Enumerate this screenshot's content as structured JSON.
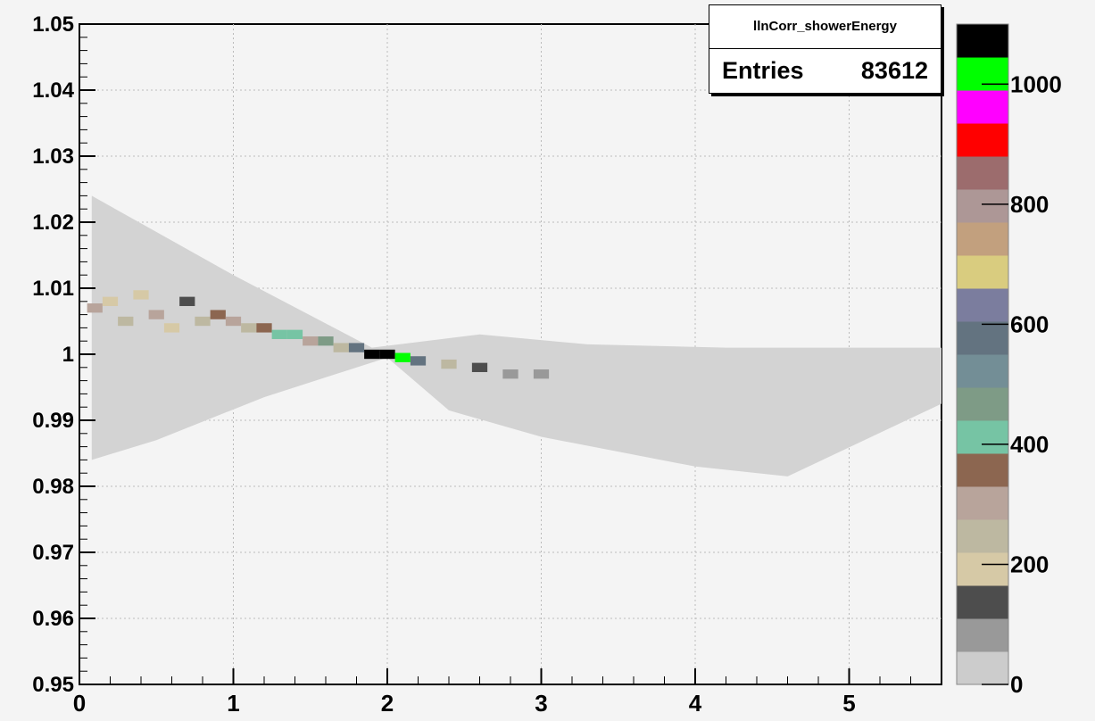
{
  "chart_data": {
    "type": "heatmap",
    "title": "",
    "xlabel": "",
    "ylabel": "",
    "xlim": [
      0,
      5.6
    ],
    "ylim": [
      0.95,
      1.05
    ],
    "grid": true,
    "x_ticks": [
      "0",
      "1",
      "2",
      "3",
      "4",
      "5"
    ],
    "y_ticks": [
      "0.95",
      "0.96",
      "0.97",
      "0.98",
      "0.99",
      "1",
      "1.01",
      "1.02",
      "1.03",
      "1.04",
      "1.05"
    ],
    "z_ticks": [
      "0",
      "200",
      "400",
      "600",
      "800",
      "1000"
    ],
    "zlim": [
      0,
      1100
    ],
    "palette": [
      "#cccccc",
      "#999999",
      "#4d4d4d",
      "#d6c9a6",
      "#bdb8a1",
      "#b8a49b",
      "#8c6650",
      "#76c4a4",
      "#7e9b86",
      "#738e96",
      "#637380",
      "#7b7d9e",
      "#d9cc7f",
      "#c2a07e",
      "#ad9796",
      "#9c6c6d",
      "#ff0000",
      "#ff00ff",
      "#00ff00",
      "#000000"
    ],
    "bins": [
      {
        "x": 0.1,
        "y": 1.007,
        "z": 320
      },
      {
        "x": 0.2,
        "y": 1.008,
        "z": 200
      },
      {
        "x": 0.3,
        "y": 1.005,
        "z": 250
      },
      {
        "x": 0.4,
        "y": 1.009,
        "z": 180
      },
      {
        "x": 0.5,
        "y": 1.006,
        "z": 300
      },
      {
        "x": 0.6,
        "y": 1.004,
        "z": 200
      },
      {
        "x": 0.7,
        "y": 1.008,
        "z": 150
      },
      {
        "x": 0.8,
        "y": 1.005,
        "z": 250
      },
      {
        "x": 0.9,
        "y": 1.006,
        "z": 350
      },
      {
        "x": 1.0,
        "y": 1.005,
        "z": 300
      },
      {
        "x": 1.1,
        "y": 1.004,
        "z": 220
      },
      {
        "x": 1.2,
        "y": 1.004,
        "z": 380
      },
      {
        "x": 1.3,
        "y": 1.003,
        "z": 420
      },
      {
        "x": 1.4,
        "y": 1.003,
        "z": 430
      },
      {
        "x": 1.5,
        "y": 1.002,
        "z": 300
      },
      {
        "x": 1.6,
        "y": 1.002,
        "z": 450
      },
      {
        "x": 1.7,
        "y": 1.001,
        "z": 250
      },
      {
        "x": 1.8,
        "y": 1.001,
        "z": 550
      },
      {
        "x": 1.9,
        "y": 1.0,
        "z": 1050
      },
      {
        "x": 2.0,
        "y": 1.0,
        "z": 1150
      },
      {
        "x": 2.1,
        "y": 0.9995,
        "z": 1000
      },
      {
        "x": 2.2,
        "y": 0.999,
        "z": 600
      },
      {
        "x": 2.4,
        "y": 0.9985,
        "z": 250
      },
      {
        "x": 2.6,
        "y": 0.998,
        "z": 150
      },
      {
        "x": 2.8,
        "y": 0.997,
        "z": 80
      },
      {
        "x": 3.0,
        "y": 0.997,
        "z": 60
      }
    ]
  },
  "stats_box": {
    "title": "llnCorr_showerEnergy",
    "entries_label": "Entries",
    "entries_value": "83612"
  }
}
